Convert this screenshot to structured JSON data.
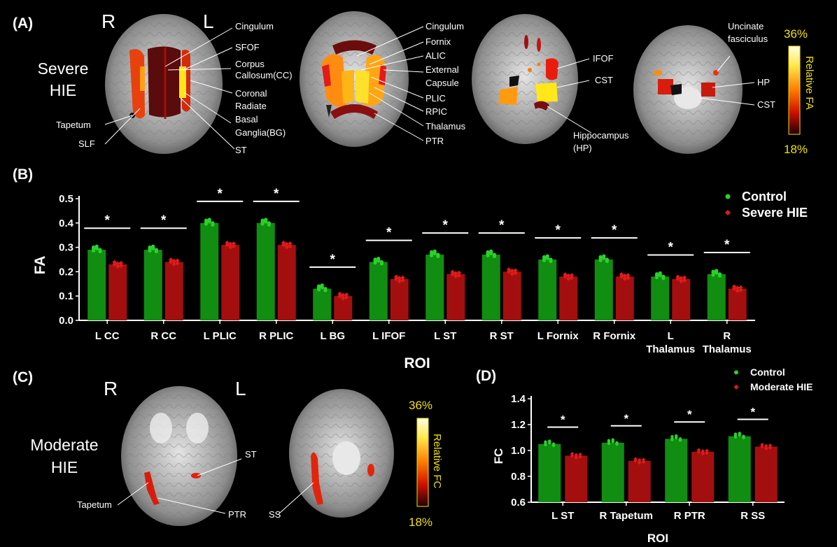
{
  "colors": {
    "control": "#118d11",
    "control_point": "#2bd12b",
    "hie": "#a30f0f",
    "hie_point": "#e21a1a",
    "yellow": "#f2e100",
    "white": "#ffffff"
  },
  "panelA": {
    "label": "(A)",
    "side_R": "R",
    "side_L": "L",
    "group": [
      "Severe",
      "HIE"
    ],
    "brain1_labels": {
      "cingulum": "Cingulum",
      "sfof": "SFOF",
      "cc": [
        "Corpus",
        "Callosum(CC)"
      ],
      "coronal": [
        "Coronal",
        "Radiate"
      ],
      "bg": [
        "Basal",
        "Ganglia(BG)"
      ],
      "st": "ST",
      "tapetum": "Tapetum",
      "slf": "SLF"
    },
    "brain2_labels": {
      "cingulum": "Cingulum",
      "fornix": "Fornix",
      "alic": "ALIC",
      "external": [
        "External",
        "Capsule"
      ],
      "plic": "PLIC",
      "rpic": "RPIC",
      "thalamus": "Thalamus",
      "ptr": "PTR"
    },
    "brain3_labels": {
      "ifof": "IFOF",
      "cst": "CST",
      "hp": [
        "Hippocampus",
        "(HP)"
      ]
    },
    "brain4_labels": {
      "uncinate": [
        "Uncinate",
        "fasciculus"
      ],
      "hp": "HP",
      "cst": "CST"
    },
    "colorbar": {
      "max": "36%",
      "min": "18%",
      "label": "Relative  FA"
    }
  },
  "panelC": {
    "label": "(C)",
    "side_R": "R",
    "side_L": "L",
    "group": [
      "Moderate",
      "HIE"
    ],
    "brain1_labels": {
      "st": "ST",
      "tapetum": "Tapetum",
      "ptr": "PTR"
    },
    "brain2_labels": {
      "ss": "SS"
    },
    "colorbar": {
      "max": "36%",
      "min": "18%",
      "label": "Relative  FC"
    }
  },
  "chart_data": [
    {
      "panel": "(B)",
      "type": "bar",
      "xlabel": "ROI",
      "ylabel": "FA",
      "ylim": [
        0,
        0.5
      ],
      "yticks": [
        "0.0",
        "0.1",
        "0.2",
        "0.3",
        "0.4",
        "0.5"
      ],
      "categories": [
        [
          "L CC"
        ],
        [
          "R CC"
        ],
        [
          "L PLIC"
        ],
        [
          "R PLIC"
        ],
        [
          "L BG"
        ],
        [
          "L IFOF"
        ],
        [
          "L ST"
        ],
        [
          "R ST"
        ],
        [
          "L Fornix"
        ],
        [
          "R Fornix"
        ],
        [
          "L",
          "Thalamus"
        ],
        [
          "R",
          "Thalamus"
        ]
      ],
      "series": [
        {
          "name": "Control",
          "values": [
            0.29,
            0.29,
            0.4,
            0.4,
            0.13,
            0.24,
            0.27,
            0.27,
            0.25,
            0.25,
            0.18,
            0.19
          ]
        },
        {
          "name": "Severe HIE",
          "values": [
            0.23,
            0.24,
            0.31,
            0.31,
            0.1,
            0.17,
            0.19,
            0.2,
            0.18,
            0.18,
            0.17,
            0.13
          ]
        }
      ],
      "significance": [
        "*",
        "*",
        "*",
        "*",
        "*",
        "*",
        "*",
        "*",
        "*",
        "*",
        "*",
        "*"
      ],
      "legend": "top-right"
    },
    {
      "panel": "(D)",
      "type": "bar",
      "xlabel": "ROI",
      "ylabel": "FC",
      "ylim": [
        0.6,
        1.4
      ],
      "yticks": [
        "0.6",
        "0.8",
        "1.0",
        "1.2",
        "1.4"
      ],
      "categories": [
        [
          "L ST"
        ],
        [
          "R Tapetum"
        ],
        [
          "R PTR"
        ],
        [
          "R SS"
        ]
      ],
      "series": [
        {
          "name": "Control",
          "values": [
            1.05,
            1.06,
            1.09,
            1.11
          ]
        },
        {
          "name": "Moderate HIE",
          "values": [
            0.96,
            0.92,
            0.99,
            1.03
          ]
        }
      ],
      "significance": [
        "*",
        "*",
        "*",
        "*"
      ],
      "legend": "top-right"
    }
  ]
}
